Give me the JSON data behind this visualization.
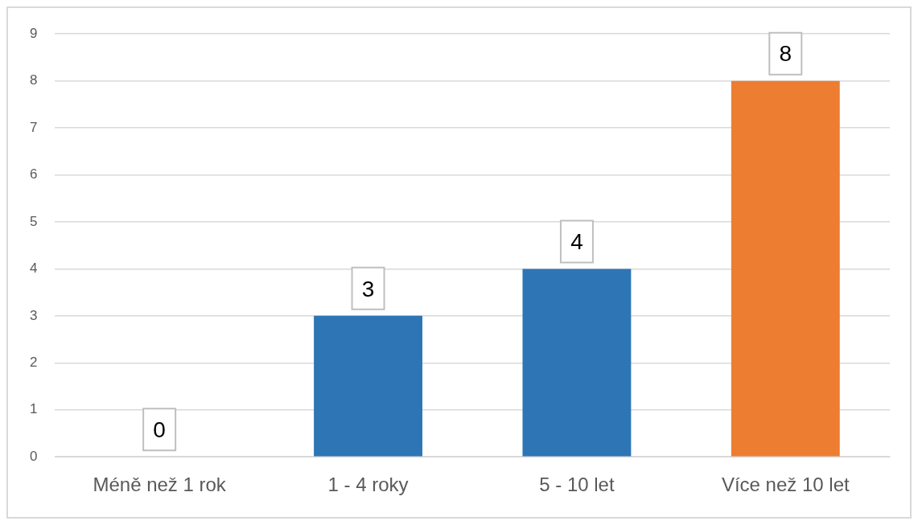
{
  "chart_data": {
    "type": "bar",
    "categories": [
      "Méně než 1 rok",
      "1 - 4 roky",
      "5 - 10 let",
      "Více než 10 let"
    ],
    "values": [
      0,
      3,
      4,
      8
    ],
    "colors": [
      "#2e75b6",
      "#2e75b6",
      "#2e75b6",
      "#ed7d31"
    ],
    "ylim": [
      0,
      9
    ],
    "yticks": [
      0,
      1,
      2,
      3,
      4,
      5,
      6,
      7,
      8,
      9
    ],
    "grid": "y",
    "data_labels": true,
    "legend": false
  }
}
